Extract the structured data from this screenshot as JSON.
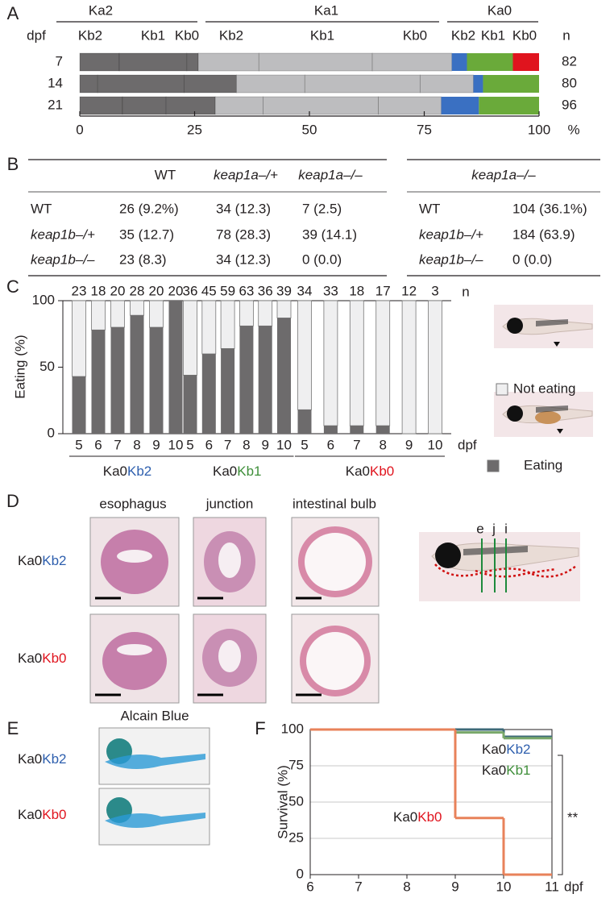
{
  "panel_labels": [
    "A",
    "B",
    "C",
    "D",
    "E",
    "F"
  ],
  "chart_data": [
    {
      "type": "stacked-hbar",
      "row_header": "dpf",
      "count_header": "n",
      "categories": [
        "7",
        "14",
        "21"
      ],
      "counts": [
        82,
        80,
        96
      ],
      "groups": [
        {
          "name": "Ka2",
          "label_color": "#58585a",
          "series": [
            {
              "name": "Kb2",
              "color": "#6d6b6c",
              "values": [
                8.6,
                3.9,
                9.3
              ]
            },
            {
              "name": "Kb1",
              "color": "#6d6b6c",
              "values": [
                14.7,
                18.8,
                9.5
              ]
            },
            {
              "name": "Kb0",
              "color": "#6d6b6c",
              "values": [
                2.5,
                11.4,
                10.7
              ]
            }
          ]
        },
        {
          "name": "Ka1",
          "label_color": "#9a9a9c",
          "series": [
            {
              "name": "Kb2",
              "color": "#bdbdbf",
              "values": [
                13.2,
                14.9,
                10.4
              ]
            },
            {
              "name": "Kb1",
              "color": "#bdbdbf",
              "values": [
                24.7,
                25.1,
                25.1
              ]
            },
            {
              "name": "Kb0",
              "color": "#bdbdbf",
              "values": [
                17.3,
                11.6,
                13.7
              ]
            }
          ]
        },
        {
          "name": "Ka0",
          "series": [
            {
              "name": "Kb2",
              "color": "#3a70c2",
              "values": [
                3.3,
                2.1,
                8.2
              ]
            },
            {
              "name": "Kb1",
              "color": "#6aaa3a",
              "values": [
                10.0,
                12.2,
                13.1
              ]
            },
            {
              "name": "Kb0",
              "color": "#e0141e",
              "values": [
                5.7,
                0,
                0
              ]
            }
          ]
        }
      ],
      "xlim": [
        0,
        100
      ],
      "xticks": [
        0,
        25,
        50,
        75,
        100
      ],
      "xunit": "%"
    },
    {
      "type": "grouped-percent-bar",
      "ylabel": "Eating (%)",
      "ylim": [
        0,
        100
      ],
      "yticks": [
        0,
        50,
        100
      ],
      "xlabel": "dpf",
      "count_header": "n",
      "groups": [
        {
          "name": [
            "Ka0",
            "Kb2"
          ],
          "label_colors": [
            "#231f20",
            "#2e5fae"
          ],
          "categories": [
            "5",
            "6",
            "7",
            "8",
            "9",
            "10"
          ],
          "counts": [
            23,
            18,
            20,
            28,
            20,
            20
          ],
          "values": [
            43,
            78,
            80,
            89,
            80,
            100
          ]
        },
        {
          "name": [
            "Ka0",
            "Kb1"
          ],
          "label_colors": [
            "#231f20",
            "#3f8f3a"
          ],
          "categories": [
            "5",
            "6",
            "7",
            "8",
            "9",
            "10"
          ],
          "counts": [
            36,
            45,
            59,
            63,
            36,
            39
          ],
          "values": [
            44,
            60,
            64,
            81,
            81,
            87
          ]
        },
        {
          "name": [
            "Ka0",
            "Kb0"
          ],
          "label_colors": [
            "#231f20",
            "#e0141e"
          ],
          "categories": [
            "5",
            "6",
            "7",
            "8",
            "9",
            "10"
          ],
          "counts": [
            34,
            33,
            18,
            17,
            12,
            3
          ],
          "values": [
            18,
            6,
            6,
            6,
            0,
            0
          ]
        }
      ],
      "legend": [
        {
          "name": "Not eating",
          "color": "#efeff0"
        },
        {
          "name": "Eating",
          "color": "#6d6b6c"
        }
      ]
    },
    {
      "type": "step-line",
      "ylabel": "Survival (%)",
      "xlabel": "dpf",
      "annotation": "**",
      "xlim": [
        6,
        11
      ],
      "xticks": [
        6,
        7,
        8,
        9,
        10,
        11
      ],
      "ylim": [
        0,
        100
      ],
      "yticks": [
        0,
        25,
        50,
        75,
        100
      ],
      "grid": true,
      "series": [
        {
          "name": [
            "Ka0",
            "Kb2"
          ],
          "label_colors": [
            "#231f20",
            "#2e5fae"
          ],
          "color": "#3d6a78",
          "x": [
            6,
            10
          ],
          "values": [
            100,
            95
          ]
        },
        {
          "name": [
            "Ka0",
            "Kb1"
          ],
          "label_colors": [
            "#231f20",
            "#3f8f3a"
          ],
          "color": "#79a86a",
          "x": [
            6,
            9,
            10
          ],
          "values": [
            100,
            98,
            94
          ]
        },
        {
          "name": [
            "Ka0",
            "Kb0"
          ],
          "label_colors": [
            "#231f20",
            "#e0141e"
          ],
          "color": "#e8825a",
          "x": [
            6,
            9,
            10
          ],
          "values": [
            100,
            39,
            0
          ]
        }
      ]
    }
  ],
  "table_b": {
    "left": {
      "columns": [
        "WT",
        "keap1a–/+",
        "keap1a–/–"
      ],
      "rows": [
        {
          "label": "WT",
          "cells": [
            "26 (9.2%)",
            "34 (12.3)",
            "7 (2.5)"
          ]
        },
        {
          "label": "keap1b–/+",
          "cells": [
            "35 (12.7)",
            "78 (28.3)",
            "39 (14.1)"
          ]
        },
        {
          "label": "keap1b–/–",
          "cells": [
            "23 (8.3)",
            "34 (12.3)",
            "0 (0.0)"
          ]
        }
      ]
    },
    "right": {
      "columns": [
        "keap1a–/–"
      ],
      "rows": [
        {
          "label": "WT",
          "cells": [
            "104 (36.1%)"
          ]
        },
        {
          "label": "keap1b–/+",
          "cells": [
            "184 (63.9)"
          ]
        },
        {
          "label": "keap1b–/–",
          "cells": [
            "0 (0.0)"
          ]
        }
      ]
    }
  },
  "panel_d": {
    "columns": [
      "esophagus",
      "junction",
      "intestinal bulb"
    ],
    "rows": [
      {
        "parts": [
          "Ka0",
          "Kb2"
        ],
        "colors": [
          "#231f20",
          "#2e5fae"
        ]
      },
      {
        "parts": [
          "Ka0",
          "Kb0"
        ],
        "colors": [
          "#231f20",
          "#e0141e"
        ]
      }
    ],
    "section_labels": [
      "e",
      "j",
      "i"
    ]
  },
  "panel_e": {
    "title": "Alcain Blue",
    "rows": [
      {
        "parts": [
          "Ka0",
          "Kb2"
        ],
        "colors": [
          "#231f20",
          "#2e5fae"
        ]
      },
      {
        "parts": [
          "Ka0",
          "Kb0"
        ],
        "colors": [
          "#231f20",
          "#e0141e"
        ]
      }
    ]
  }
}
